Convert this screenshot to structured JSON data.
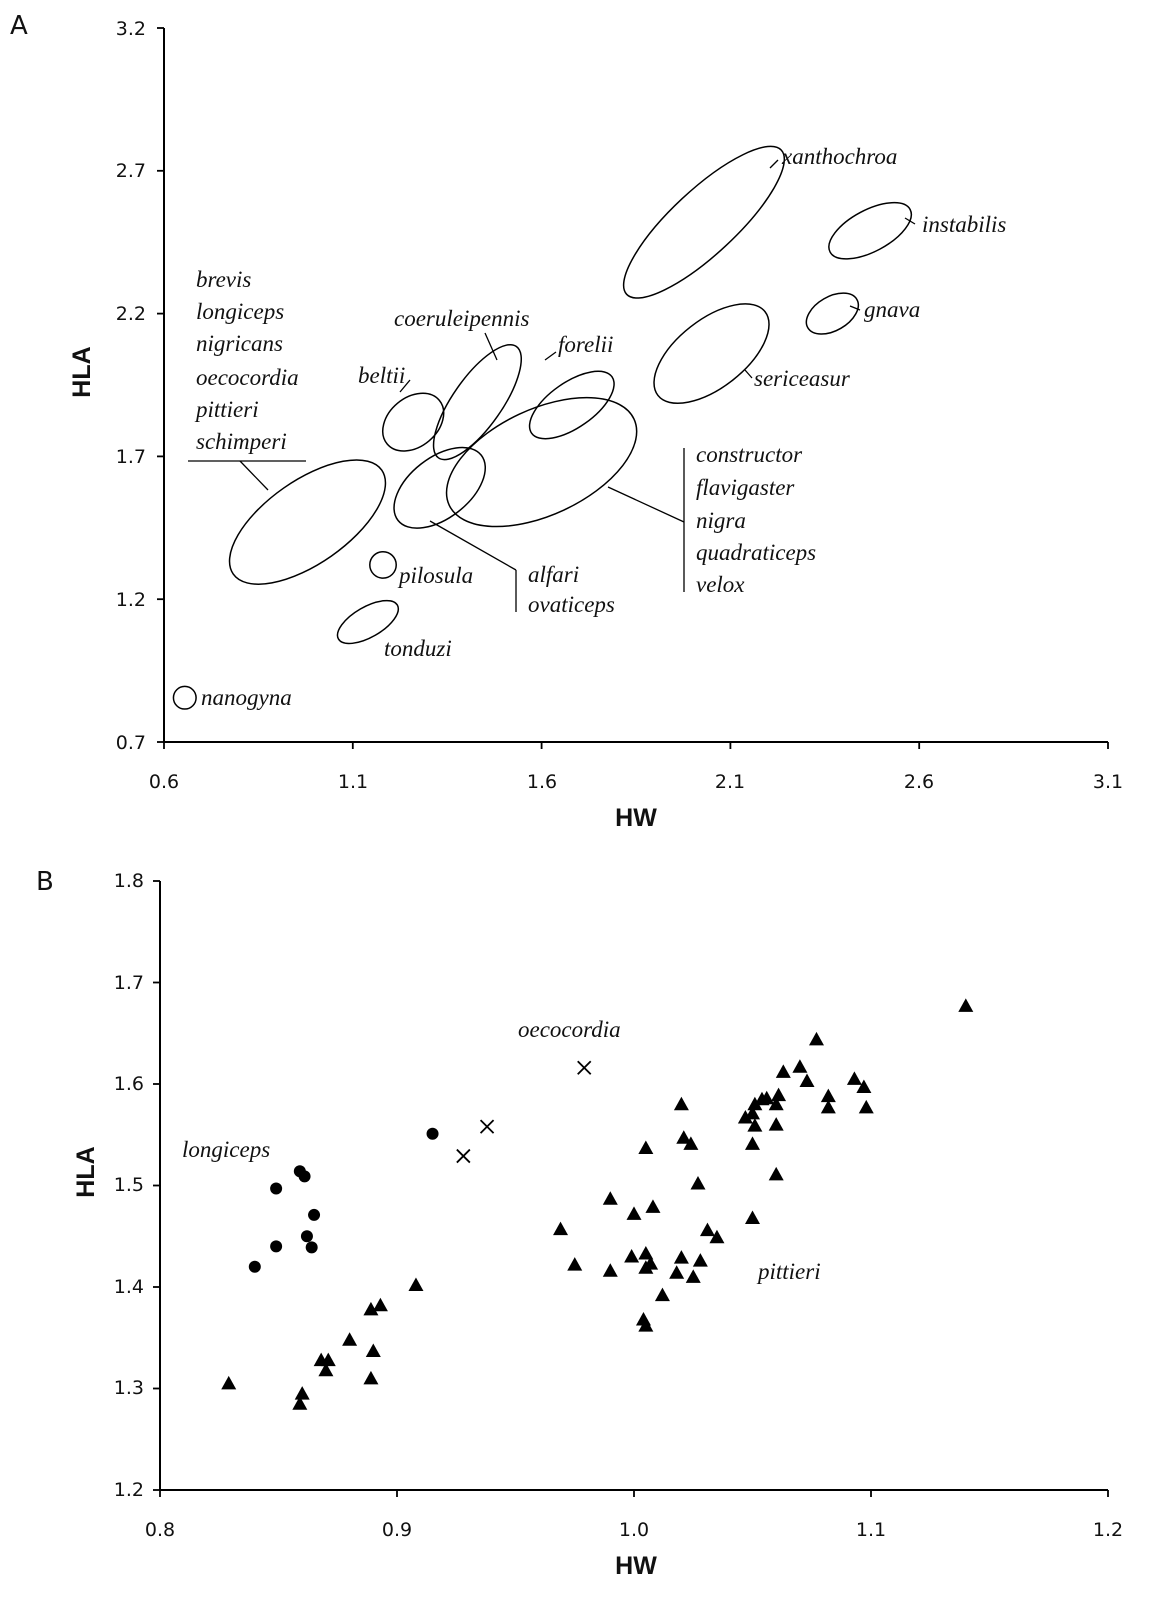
{
  "chart_data": [
    {
      "panel": "A",
      "type": "scatter",
      "xlabel": "HW",
      "ylabel": "HLA",
      "xlim": [
        0.6,
        3.1
      ],
      "ylim": [
        0.7,
        3.2
      ],
      "xticks": [
        "0.6",
        "1.1",
        "1.6",
        "2.1",
        "2.6",
        "3.1"
      ],
      "yticks": [
        "0.7",
        "1.2",
        "1.7",
        "2.2",
        "2.7",
        "3.2"
      ],
      "grid": false,
      "species_ranges": [
        {
          "label": "xanthochroa",
          "center": [
            2.03,
            2.52
          ],
          "semi_major_hw": 0.28,
          "semi_minor_hw": 0.085,
          "angle_deg": 43
        },
        {
          "label": "instabilis",
          "center": [
            2.47,
            2.49
          ],
          "semi_major_hw": 0.12,
          "semi_minor_hw": 0.055,
          "angle_deg": 28
        },
        {
          "label": "gnava",
          "center": [
            2.37,
            2.2
          ],
          "semi_major_hw": 0.075,
          "semi_minor_hw": 0.045,
          "angle_deg": 30
        },
        {
          "label": "sericeasur",
          "center": [
            2.05,
            2.06
          ],
          "semi_major_hw": 0.18,
          "semi_minor_hw": 0.09,
          "angle_deg": 38
        },
        {
          "label": "coeruleipennis",
          "center": [
            1.43,
            1.89
          ],
          "semi_major_hw": 0.18,
          "semi_minor_hw": 0.065,
          "angle_deg": 55
        },
        {
          "label": "forelii",
          "center": [
            1.68,
            1.88
          ],
          "semi_major_hw": 0.13,
          "semi_minor_hw": 0.06,
          "angle_deg": 35
        },
        {
          "label": "beltii",
          "center": [
            1.26,
            1.82
          ],
          "semi_major_hw": 0.09,
          "semi_minor_hw": 0.065,
          "angle_deg": 40
        },
        {
          "label": "alfari ovaticeps",
          "center": [
            1.33,
            1.59
          ],
          "semi_major_hw": 0.14,
          "semi_minor_hw": 0.08,
          "angle_deg": 38
        },
        {
          "label": "constructor flavigaster nigra quadraticeps velox",
          "center": [
            1.6,
            1.68
          ],
          "semi_major_hw": 0.27,
          "semi_minor_hw": 0.14,
          "angle_deg": 25
        },
        {
          "label": "brevis longiceps nigricans oecocordia pittieri schimperi",
          "center": [
            0.98,
            1.47
          ],
          "semi_major_hw": 0.24,
          "semi_minor_hw": 0.11,
          "angle_deg": 35
        },
        {
          "label": "pilosula",
          "center": [
            1.18,
            1.32
          ],
          "semi_major_hw": 0.035,
          "semi_minor_hw": 0.035,
          "angle_deg": 0
        },
        {
          "label": "tonduzi",
          "center": [
            1.14,
            1.12
          ],
          "semi_major_hw": 0.09,
          "semi_minor_hw": 0.04,
          "angle_deg": 30
        },
        {
          "label": "nanogyna",
          "center": [
            0.655,
            0.855
          ],
          "semi_major_hw": 0.03,
          "semi_minor_hw": 0.03,
          "angle_deg": 0
        }
      ],
      "labels": {
        "xanthochroa": "xanthochroa",
        "instabilis": "instabilis",
        "gnava": "gnava",
        "sericeasur": "sericeasur",
        "coeruleipennis": "coeruleipennis",
        "forelii": "forelii",
        "beltii": "beltii",
        "pilosula": "pilosula",
        "tonduzi": "tonduzi",
        "nanogyna": "nanogyna",
        "alfari": "alfari",
        "ovaticeps": "ovaticeps",
        "group_left": [
          "brevis",
          "longiceps",
          "nigricans",
          "oecocordia",
          "pittieri",
          "schimperi"
        ],
        "group_right": [
          "constructor",
          "flavigaster",
          "nigra",
          "quadraticeps",
          "velox"
        ]
      }
    },
    {
      "panel": "B",
      "type": "scatter",
      "xlabel": "HW",
      "ylabel": "HLA",
      "xlim": [
        0.8,
        1.2
      ],
      "ylim": [
        1.2,
        1.8
      ],
      "xticks": [
        "0.8",
        "0.9",
        "1.0",
        "1.1",
        "1.2"
      ],
      "yticks": [
        "1.2",
        "1.3",
        "1.4",
        "1.5",
        "1.6",
        "1.7",
        "1.8"
      ],
      "grid": false,
      "series": [
        {
          "name": "longiceps",
          "marker": "circle",
          "points": [
            [
              0.84,
              1.42
            ],
            [
              0.849,
              1.44
            ],
            [
              0.849,
              1.497
            ],
            [
              0.859,
              1.514
            ],
            [
              0.861,
              1.509
            ],
            [
              0.862,
              1.45
            ],
            [
              0.864,
              1.439
            ],
            [
              0.865,
              1.471
            ],
            [
              0.915,
              1.551
            ]
          ]
        },
        {
          "name": "oecocordia",
          "marker": "cross",
          "points": [
            [
              0.928,
              1.529
            ],
            [
              0.938,
              1.558
            ],
            [
              0.979,
              1.616
            ]
          ]
        },
        {
          "name": "pittieri",
          "marker": "triangle",
          "points": [
            [
              0.829,
              1.305
            ],
            [
              0.859,
              1.285
            ],
            [
              0.86,
              1.295
            ],
            [
              0.868,
              1.328
            ],
            [
              0.87,
              1.318
            ],
            [
              0.871,
              1.328
            ],
            [
              0.88,
              1.348
            ],
            [
              0.889,
              1.378
            ],
            [
              0.89,
              1.337
            ],
            [
              0.889,
              1.31
            ],
            [
              0.893,
              1.382
            ],
            [
              0.908,
              1.402
            ],
            [
              0.969,
              1.457
            ],
            [
              0.975,
              1.422
            ],
            [
              0.99,
              1.487
            ],
            [
              0.99,
              1.416
            ],
            [
              0.999,
              1.43
            ],
            [
              1.0,
              1.472
            ],
            [
              1.004,
              1.368
            ],
            [
              1.005,
              1.433
            ],
            [
              1.005,
              1.362
            ],
            [
              1.005,
              1.537
            ],
            [
              1.005,
              1.419
            ],
            [
              1.007,
              1.423
            ],
            [
              1.008,
              1.479
            ],
            [
              1.012,
              1.392
            ],
            [
              1.018,
              1.414
            ],
            [
              1.02,
              1.429
            ],
            [
              1.02,
              1.58
            ],
            [
              1.021,
              1.547
            ],
            [
              1.024,
              1.541
            ],
            [
              1.025,
              1.41
            ],
            [
              1.027,
              1.502
            ],
            [
              1.028,
              1.426
            ],
            [
              1.031,
              1.456
            ],
            [
              1.035,
              1.449
            ],
            [
              1.047,
              1.567
            ],
            [
              1.05,
              1.571
            ],
            [
              1.05,
              1.541
            ],
            [
              1.05,
              1.468
            ],
            [
              1.051,
              1.559
            ],
            [
              1.051,
              1.58
            ],
            [
              1.054,
              1.585
            ],
            [
              1.056,
              1.586
            ],
            [
              1.06,
              1.58
            ],
            [
              1.06,
              1.511
            ],
            [
              1.06,
              1.56
            ],
            [
              1.061,
              1.589
            ],
            [
              1.063,
              1.612
            ],
            [
              1.07,
              1.617
            ],
            [
              1.073,
              1.603
            ],
            [
              1.077,
              1.644
            ],
            [
              1.082,
              1.588
            ],
            [
              1.082,
              1.577
            ],
            [
              1.093,
              1.605
            ],
            [
              1.097,
              1.597
            ],
            [
              1.098,
              1.577
            ],
            [
              1.14,
              1.677
            ]
          ]
        }
      ],
      "labels": {
        "longiceps": "longiceps",
        "oecocordia": "oecocordia",
        "pittieri": "pittieri"
      }
    }
  ]
}
